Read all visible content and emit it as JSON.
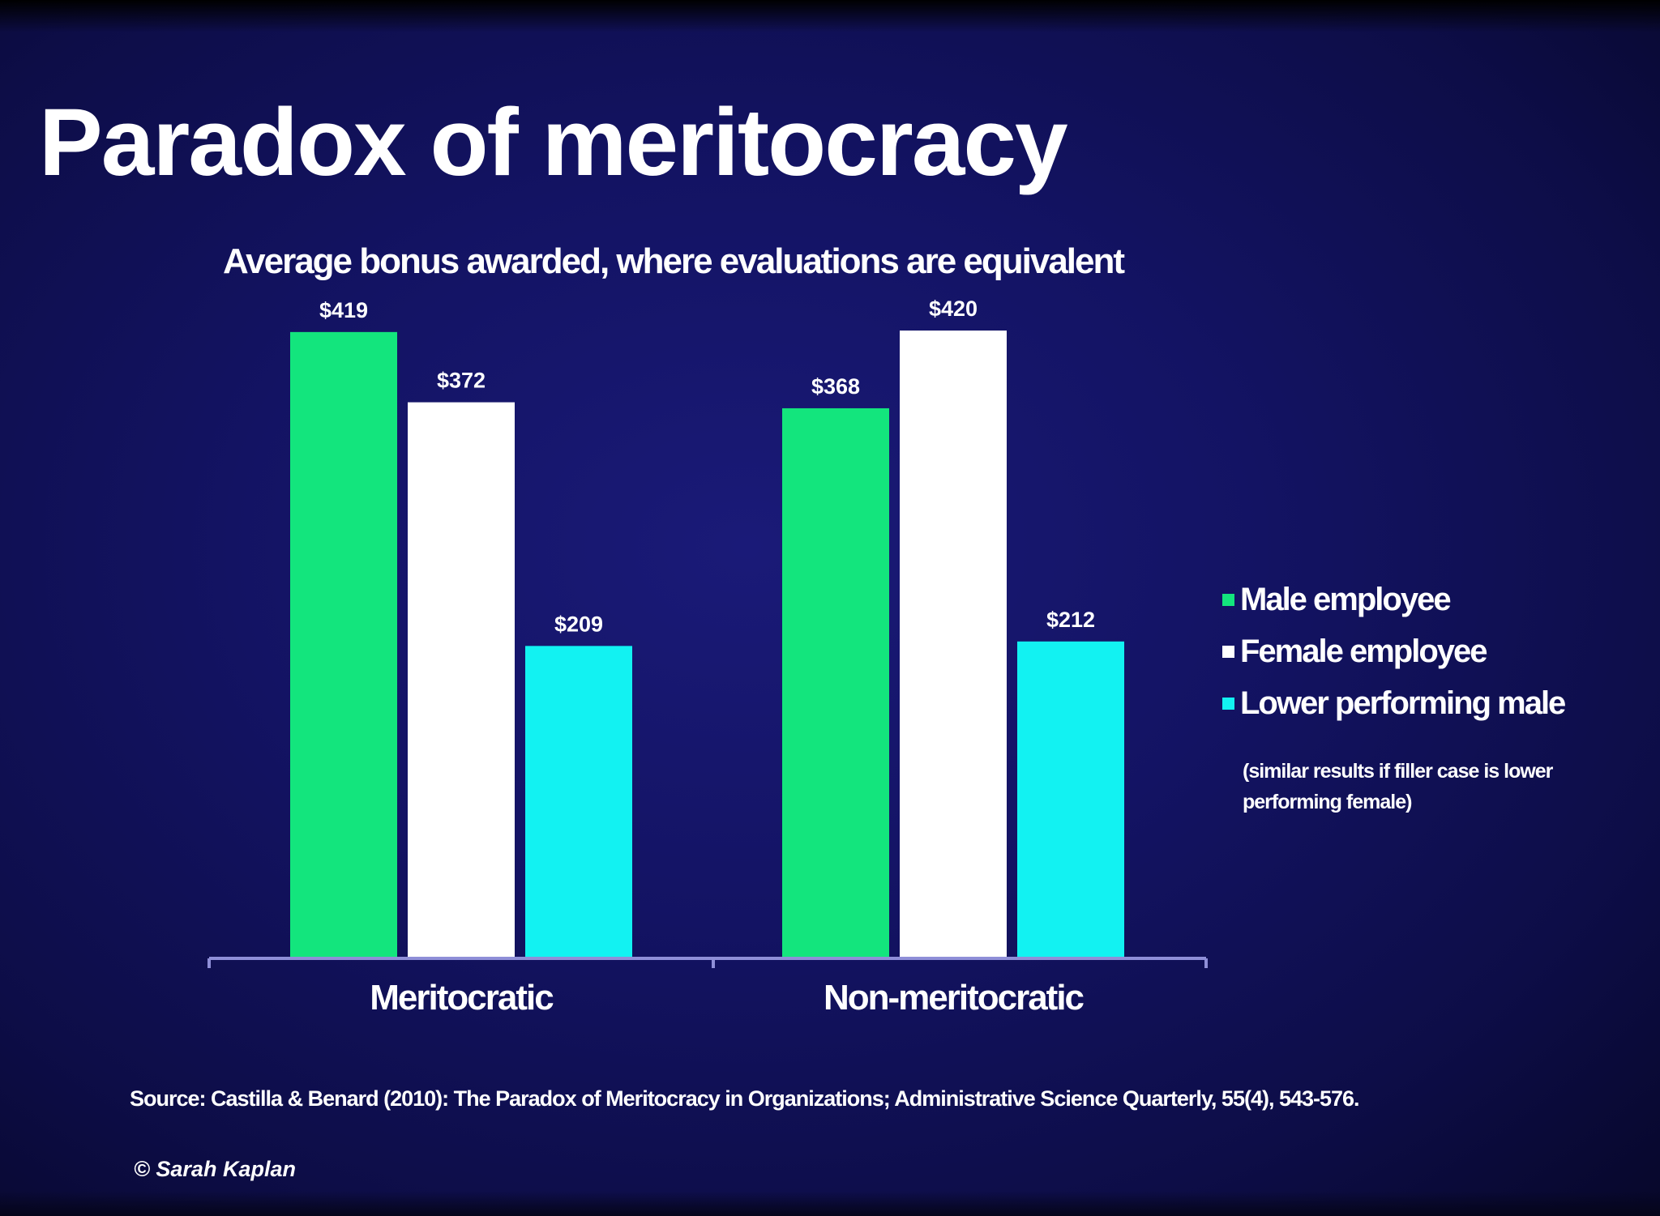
{
  "slide": {
    "title": "Paradox of meritocracy",
    "note": "(similar results if filler case is lower performing female)",
    "source": "Source: Castilla & Benard (2010): The Paradox of Meritocracy in Organizations; Administrative Science Quarterly, 55(4), 543-576.",
    "copyright": "© Sarah Kaplan"
  },
  "chart_data": {
    "type": "bar",
    "title": "Average bonus awarded, where evaluations are equivalent",
    "categories": [
      "Meritocratic",
      "Non-meritocratic"
    ],
    "series": [
      {
        "name": "Male employee",
        "color": "#13e57d",
        "values": [
          419,
          368
        ],
        "labels": [
          "$419",
          "$368"
        ]
      },
      {
        "name": "Female employee",
        "color": "#ffffff",
        "values": [
          372,
          420
        ],
        "labels": [
          "$372",
          "$420"
        ]
      },
      {
        "name": "Lower performing male",
        "color": "#12f2f2",
        "values": [
          209,
          212
        ],
        "labels": [
          "$209",
          "$212"
        ]
      }
    ],
    "ylim": [
      0,
      420
    ],
    "grid": false,
    "legend": "right"
  }
}
